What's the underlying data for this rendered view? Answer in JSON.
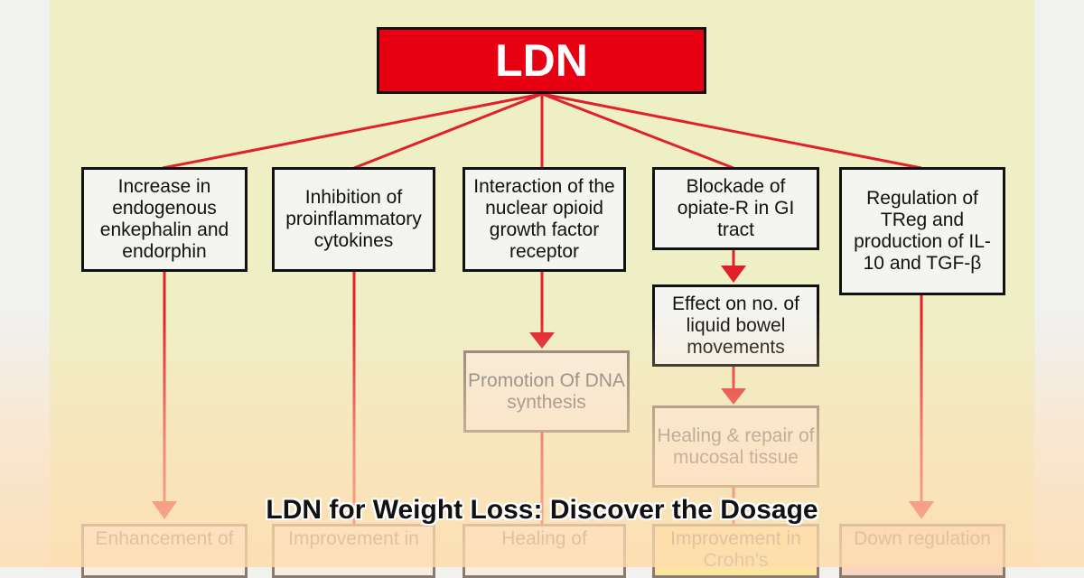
{
  "root": {
    "label": "LDN"
  },
  "mechanisms": [
    "Increase in endogenous enkephalin and endorphin",
    "Inhibition of proinflammatory cytokines",
    "Interaction of the nuclear opioid growth factor receptor",
    "Blockade of opiate-R in GI tract",
    "Regulation of TReg and production of IL-10 and TGF-β"
  ],
  "secondary": {
    "promotion": "Promotion Of DNA synthesis",
    "effect": "Effect on no. of liquid bowel movements",
    "healing": "Healing & repair of mucosal tissue"
  },
  "outcomes": [
    "Enhancement of",
    "Improvement in",
    "Healing of",
    "Improvement in Crohn's",
    "Down regulation"
  ],
  "caption": "LDN for Weight Loss: Discover the Dosage",
  "colors": {
    "root": "#e60012",
    "line": "#e0202a",
    "panel": "#efefc6"
  }
}
